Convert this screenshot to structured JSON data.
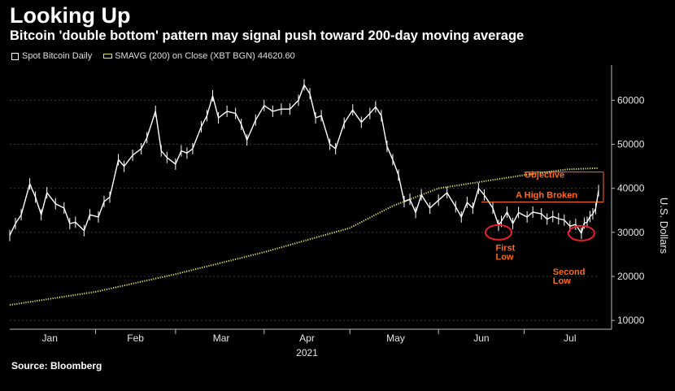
{
  "header": {
    "title": "Looking Up",
    "subtitle": "Bitcoin 'double bottom' pattern may signal push toward 200-day moving average"
  },
  "legend": {
    "series1_label": "Spot Bitcoin Daily",
    "series2_label": "SMAVG (200)  on Close (XBT BGN) 44620.60"
  },
  "footer": {
    "source": "Source: Bloomberg"
  },
  "colors": {
    "background": "#000000",
    "price": "#ffffff",
    "sma": "#e8e26a",
    "annotation": "#ff6a1a",
    "axis": "#bdbdbd"
  },
  "chart_data": {
    "type": "line",
    "xlabel": "2021",
    "ylabel": "U.S. Dollars",
    "x_range": [
      "2021-01-01",
      "2021-07-26"
    ],
    "ylim": [
      8000,
      68000
    ],
    "y_ticks": [
      10000,
      20000,
      30000,
      40000,
      50000,
      60000
    ],
    "y_tick_labels": [
      "10000",
      "20000",
      "30000",
      "40000",
      "50000",
      "60000"
    ],
    "x_tick_labels": [
      {
        "date": "2021-01-15",
        "label": "Jan"
      },
      {
        "date": "2021-02-14",
        "label": "Feb"
      },
      {
        "date": "2021-03-16",
        "label": "Mar"
      },
      {
        "date": "2021-04-15",
        "label": "Apr"
      },
      {
        "date": "2021-05-16",
        "label": "May"
      },
      {
        "date": "2021-06-15",
        "label": "Jun"
      },
      {
        "date": "2021-07-16",
        "label": "Jul"
      }
    ],
    "x_month_boundaries": [
      "2021-01-31",
      "2021-02-28",
      "2021-03-31",
      "2021-04-30",
      "2021-05-31",
      "2021-06-30"
    ],
    "series": [
      {
        "name": "Spot Bitcoin Daily",
        "points": [
          [
            "2021-01-01",
            29300
          ],
          [
            "2021-01-03",
            32000
          ],
          [
            "2021-01-05",
            34000
          ],
          [
            "2021-01-08",
            41000
          ],
          [
            "2021-01-10",
            38000
          ],
          [
            "2021-01-12",
            34000
          ],
          [
            "2021-01-14",
            39000
          ],
          [
            "2021-01-17",
            36500
          ],
          [
            "2021-01-20",
            35500
          ],
          [
            "2021-01-22",
            32000
          ],
          [
            "2021-01-24",
            32300
          ],
          [
            "2021-01-27",
            30400
          ],
          [
            "2021-01-29",
            34000
          ],
          [
            "2021-02-01",
            33500
          ],
          [
            "2021-02-03",
            37000
          ],
          [
            "2021-02-05",
            38000
          ],
          [
            "2021-02-08",
            46500
          ],
          [
            "2021-02-10",
            45000
          ],
          [
            "2021-02-13",
            47500
          ],
          [
            "2021-02-16",
            49000
          ],
          [
            "2021-02-18",
            51500
          ],
          [
            "2021-02-21",
            57500
          ],
          [
            "2021-02-23",
            48500
          ],
          [
            "2021-02-25",
            47000
          ],
          [
            "2021-02-28",
            45500
          ],
          [
            "2021-03-02",
            48500
          ],
          [
            "2021-03-04",
            48000
          ],
          [
            "2021-03-06",
            49000
          ],
          [
            "2021-03-09",
            54000
          ],
          [
            "2021-03-11",
            56500
          ],
          [
            "2021-03-13",
            61000
          ],
          [
            "2021-03-15",
            56000
          ],
          [
            "2021-03-18",
            57500
          ],
          [
            "2021-03-21",
            57000
          ],
          [
            "2021-03-23",
            54500
          ],
          [
            "2021-03-25",
            51000
          ],
          [
            "2021-03-28",
            55500
          ],
          [
            "2021-03-31",
            58800
          ],
          [
            "2021-04-03",
            57500
          ],
          [
            "2021-04-06",
            58000
          ],
          [
            "2021-04-09",
            58000
          ],
          [
            "2021-04-12",
            60000
          ],
          [
            "2021-04-14",
            63500
          ],
          [
            "2021-04-16",
            61500
          ],
          [
            "2021-04-18",
            56000
          ],
          [
            "2021-04-20",
            56500
          ],
          [
            "2021-04-23",
            50000
          ],
          [
            "2021-04-25",
            49000
          ],
          [
            "2021-04-28",
            54800
          ],
          [
            "2021-05-01",
            57800
          ],
          [
            "2021-05-04",
            55000
          ],
          [
            "2021-05-07",
            57000
          ],
          [
            "2021-05-09",
            58500
          ],
          [
            "2021-05-11",
            56500
          ],
          [
            "2021-05-13",
            49500
          ],
          [
            "2021-05-15",
            46500
          ],
          [
            "2021-05-17",
            43000
          ],
          [
            "2021-05-19",
            37000
          ],
          [
            "2021-05-21",
            37500
          ],
          [
            "2021-05-23",
            34500
          ],
          [
            "2021-05-25",
            38500
          ],
          [
            "2021-05-28",
            35500
          ],
          [
            "2021-05-31",
            37300
          ],
          [
            "2021-06-03",
            39000
          ],
          [
            "2021-06-06",
            35800
          ],
          [
            "2021-06-08",
            33500
          ],
          [
            "2021-06-10",
            36800
          ],
          [
            "2021-06-12",
            35500
          ],
          [
            "2021-06-14",
            40000
          ],
          [
            "2021-06-16",
            38500
          ],
          [
            "2021-06-19",
            35500
          ],
          [
            "2021-06-21",
            31600
          ],
          [
            "2021-06-22",
            32500
          ],
          [
            "2021-06-24",
            34600
          ],
          [
            "2021-06-26",
            32000
          ],
          [
            "2021-06-28",
            34500
          ],
          [
            "2021-07-01",
            33500
          ],
          [
            "2021-07-03",
            34600
          ],
          [
            "2021-07-06",
            34200
          ],
          [
            "2021-07-08",
            33000
          ],
          [
            "2021-07-10",
            33600
          ],
          [
            "2021-07-12",
            33100
          ],
          [
            "2021-07-14",
            32800
          ],
          [
            "2021-07-16",
            31400
          ],
          [
            "2021-07-18",
            31800
          ],
          [
            "2021-07-20",
            29800
          ],
          [
            "2021-07-21",
            32100
          ],
          [
            "2021-07-22",
            32300
          ],
          [
            "2021-07-23",
            33600
          ],
          [
            "2021-07-24",
            34200
          ],
          [
            "2021-07-25",
            35400
          ],
          [
            "2021-07-26",
            39500
          ]
        ]
      },
      {
        "name": "SMAVG (200)  on Close (XBT BGN) 44620.60",
        "points": [
          [
            "2021-01-01",
            13500
          ],
          [
            "2021-01-31",
            16500
          ],
          [
            "2021-02-28",
            20500
          ],
          [
            "2021-03-31",
            25500
          ],
          [
            "2021-04-30",
            31000
          ],
          [
            "2021-05-15",
            36000
          ],
          [
            "2021-05-31",
            40000
          ],
          [
            "2021-06-15",
            41500
          ],
          [
            "2021-06-30",
            43000
          ],
          [
            "2021-07-15",
            44300
          ],
          [
            "2021-07-26",
            44600
          ]
        ]
      }
    ],
    "annotations": [
      {
        "label": "Objective",
        "date": "2021-06-30",
        "value": 42400
      },
      {
        "label": "A High Broken",
        "date": "2021-06-27",
        "value": 37800
      },
      {
        "label": "First",
        "date": "2021-06-20",
        "value": 25800
      },
      {
        "label": "Low",
        "date": "2021-06-20",
        "value": 23800
      },
      {
        "label": "Second",
        "date": "2021-07-10",
        "value": 20400
      },
      {
        "label": "Low",
        "date": "2021-07-10",
        "value": 18300
      }
    ],
    "reference_lines": [
      {
        "value": 43700,
        "from": "2021-06-30",
        "to": "2021-07-27"
      },
      {
        "value": 36900,
        "from": "2021-06-15",
        "to": "2021-07-27"
      }
    ],
    "circled_points": [
      {
        "date": "2021-06-21",
        "value": 30000
      },
      {
        "date": "2021-07-20",
        "value": 29800
      }
    ]
  }
}
